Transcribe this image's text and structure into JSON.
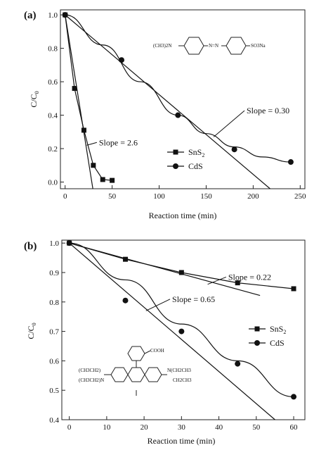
{
  "chart_data": [
    {
      "panel_label": "(a)",
      "type": "scatter",
      "xlabel": "Reaction time (min)",
      "ylabel_main": "C/C",
      "ylabel_sub": "0",
      "xlim": [
        -5,
        255
      ],
      "ylim": [
        -0.04,
        1.03
      ],
      "xticks": [
        0,
        50,
        100,
        150,
        200,
        250
      ],
      "yticks": [
        0.0,
        0.2,
        0.4,
        0.6,
        0.8,
        1.0
      ],
      "ytick_labels": [
        "0.0",
        "0.2",
        "0.4",
        "0.6",
        "0.8",
        "1.0"
      ],
      "series": [
        {
          "name_main": "SnS",
          "name_sub": "2",
          "marker": "square",
          "x": [
            0,
            10,
            20,
            30,
            40,
            50
          ],
          "y": [
            1.0,
            0.56,
            0.31,
            0.1,
            0.015,
            0.01
          ]
        },
        {
          "name_main": "CdS",
          "name_sub": "",
          "marker": "circle",
          "x": [
            0,
            60,
            120,
            180,
            240
          ],
          "y": [
            1.0,
            0.73,
            0.4,
            0.195,
            0.12
          ]
        }
      ],
      "fit_lines": [
        {
          "x": [
            0,
            29.5
          ],
          "y": [
            1.0,
            -0.04
          ]
        },
        {
          "x": [
            0,
            218
          ],
          "y": [
            1.0,
            -0.04
          ]
        }
      ],
      "curve": {
        "x": [
          0,
          40,
          80,
          120,
          150,
          180,
          210,
          240
        ],
        "y": [
          1.0,
          0.82,
          0.6,
          0.4,
          0.29,
          0.21,
          0.15,
          0.12
        ]
      },
      "annotations": [
        {
          "text": "Slope = 2.6",
          "x": 36,
          "y": 0.22,
          "arrow_to": [
            23,
            0.22
          ]
        },
        {
          "text": "Slope = 0.30",
          "x": 193,
          "y": 0.41,
          "arrow_to": [
            158,
            0.27
          ]
        }
      ],
      "molecule_left": "(CH3)2N",
      "molecule_right": "SO3Na",
      "legend": "bottom-center"
    },
    {
      "panel_label": "(b)",
      "type": "scatter",
      "xlabel": "Reaction time (min)",
      "ylabel_main": "C/C",
      "ylabel_sub": "0",
      "xlim": [
        -2,
        63
      ],
      "ylim": [
        0.4,
        1.01
      ],
      "xticks": [
        0,
        10,
        20,
        30,
        40,
        50,
        60
      ],
      "yticks": [
        0.4,
        0.5,
        0.6,
        0.7,
        0.8,
        0.9,
        1.0
      ],
      "ytick_labels": [
        "0.4",
        "0.5",
        "0.6",
        "0.7",
        "0.8",
        "0.9",
        "1.0"
      ],
      "series": [
        {
          "name_main": "SnS",
          "name_sub": "2",
          "marker": "square",
          "x": [
            0,
            15,
            30,
            45,
            60
          ],
          "y": [
            1.0,
            0.945,
            0.9,
            0.865,
            0.845
          ]
        },
        {
          "name_main": "CdS",
          "name_sub": "",
          "marker": "circle",
          "x": [
            0,
            15,
            30,
            45,
            60
          ],
          "y": [
            1.0,
            0.805,
            0.7,
            0.59,
            0.478
          ]
        }
      ],
      "fit_lines": [
        {
          "x": [
            0,
            51
          ],
          "y": [
            1.0,
            0.822
          ]
        },
        {
          "x": [
            0,
            55
          ],
          "y": [
            1.0,
            0.4
          ]
        }
      ],
      "curve": {
        "x": [
          0,
          15,
          30,
          45,
          60
        ],
        "y": [
          1.0,
          0.875,
          0.725,
          0.6,
          0.478
        ]
      },
      "annotations": [
        {
          "text": "Slope = 0.22",
          "x": 42.5,
          "y": 0.875,
          "arrow_to": [
            37,
            0.86
          ]
        },
        {
          "text": "Slope = 0.65",
          "x": 27.5,
          "y": 0.8,
          "arrow_to": [
            20.5,
            0.77
          ]
        }
      ],
      "molecule_label": "COOH",
      "legend": "right-middle"
    }
  ]
}
